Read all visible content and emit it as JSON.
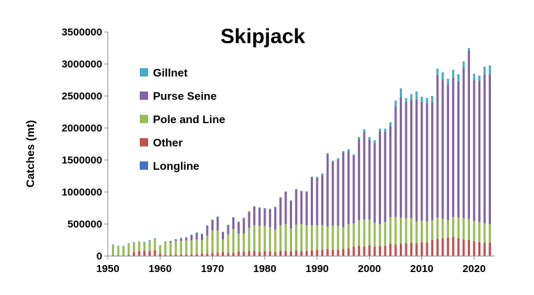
{
  "chart_data": {
    "type": "bar",
    "stacked": true,
    "title": "Skipjack",
    "xlabel": "",
    "ylabel": "Catches (mt)",
    "ylim": [
      0,
      3500000
    ],
    "y_ticks": [
      "0",
      "500000",
      "1000000",
      "1500000",
      "2000000",
      "2500000",
      "3000000",
      "3500000"
    ],
    "y_tick_values": [
      0,
      500000,
      1000000,
      1500000,
      2000000,
      2500000,
      3000000,
      3500000
    ],
    "x_ticks": [
      "1950",
      "1960",
      "1970",
      "1980",
      "1990",
      "2000",
      "2010",
      "2020"
    ],
    "x_tick_values": [
      1950,
      1960,
      1970,
      1980,
      1990,
      2000,
      2010,
      2020
    ],
    "xlim": [
      1950,
      2024
    ],
    "grid": false,
    "legend_position": "upper-left",
    "categories": [
      1951,
      1952,
      1953,
      1954,
      1955,
      1956,
      1957,
      1958,
      1959,
      1960,
      1961,
      1962,
      1963,
      1964,
      1965,
      1966,
      1967,
      1968,
      1969,
      1970,
      1971,
      1972,
      1973,
      1974,
      1975,
      1976,
      1977,
      1978,
      1979,
      1980,
      1981,
      1982,
      1983,
      1984,
      1985,
      1986,
      1987,
      1988,
      1989,
      1990,
      1991,
      1992,
      1993,
      1994,
      1995,
      1996,
      1997,
      1998,
      1999,
      2000,
      2001,
      2002,
      2003,
      2004,
      2005,
      2006,
      2007,
      2008,
      2009,
      2010,
      2011,
      2012,
      2013,
      2014,
      2015,
      2016,
      2017,
      2018,
      2019,
      2020,
      2021,
      2022,
      2023
    ],
    "series": [
      {
        "name": "Longline",
        "color": "#4472C4",
        "values": [
          0,
          0,
          0,
          0,
          0,
          0,
          0,
          0,
          0,
          0,
          0,
          0,
          0,
          0,
          0,
          0,
          0,
          0,
          0,
          0,
          0,
          0,
          0,
          0,
          0,
          0,
          0,
          0,
          0,
          0,
          0,
          0,
          0,
          0,
          0,
          0,
          0,
          0,
          0,
          0,
          0,
          0,
          0,
          0,
          0,
          0,
          0,
          0,
          0,
          0,
          0,
          0,
          0,
          0,
          0,
          0,
          0,
          0,
          0,
          0,
          0,
          0,
          0,
          0,
          0,
          0,
          0,
          0,
          0,
          0,
          0,
          0,
          0
        ]
      },
      {
        "name": "Other",
        "color": "#C0504D",
        "values": [
          10000,
          10000,
          10000,
          20000,
          60000,
          80000,
          85000,
          80000,
          90000,
          40000,
          20000,
          20000,
          25000,
          25000,
          25000,
          25000,
          30000,
          40000,
          40000,
          50000,
          50000,
          60000,
          50000,
          50000,
          70000,
          70000,
          80000,
          80000,
          60000,
          80000,
          70000,
          60000,
          80000,
          80000,
          70000,
          90000,
          80000,
          80000,
          90000,
          100000,
          100000,
          110000,
          100000,
          100000,
          110000,
          120000,
          150000,
          160000,
          150000,
          170000,
          150000,
          160000,
          160000,
          190000,
          180000,
          190000,
          200000,
          210000,
          200000,
          220000,
          210000,
          250000,
          270000,
          280000,
          290000,
          300000,
          280000,
          260000,
          250000,
          230000,
          220000,
          210000,
          210000
        ]
      },
      {
        "name": "Pole and Line",
        "color": "#9BBB59",
        "values": [
          160000,
          140000,
          140000,
          170000,
          150000,
          140000,
          130000,
          160000,
          180000,
          120000,
          200000,
          190000,
          210000,
          210000,
          220000,
          220000,
          230000,
          210000,
          280000,
          350000,
          350000,
          200000,
          290000,
          370000,
          280000,
          280000,
          360000,
          400000,
          410000,
          390000,
          380000,
          350000,
          400000,
          420000,
          360000,
          400000,
          420000,
          400000,
          390000,
          380000,
          380000,
          350000,
          380000,
          370000,
          340000,
          380000,
          360000,
          400000,
          420000,
          400000,
          370000,
          340000,
          370000,
          420000,
          430000,
          410000,
          390000,
          380000,
          340000,
          330000,
          330000,
          310000,
          330000,
          300000,
          270000,
          310000,
          320000,
          330000,
          330000,
          320000,
          310000,
          300000,
          290000
        ]
      },
      {
        "name": "Purse Seine",
        "color": "#8064A2",
        "values": [
          0,
          0,
          0,
          0,
          0,
          0,
          0,
          0,
          0,
          0,
          0,
          20000,
          20000,
          40000,
          40000,
          80000,
          100000,
          90000,
          150000,
          160000,
          210000,
          110000,
          140000,
          180000,
          180000,
          240000,
          250000,
          290000,
          280000,
          270000,
          280000,
          350000,
          430000,
          500000,
          430000,
          550000,
          510000,
          520000,
          750000,
          740000,
          790000,
          1130000,
          990000,
          1040000,
          1170000,
          1140000,
          1050000,
          1270000,
          1370000,
          1250000,
          1250000,
          1450000,
          1410000,
          1420000,
          1730000,
          1880000,
          1820000,
          1850000,
          1900000,
          1860000,
          1850000,
          1840000,
          2230000,
          2180000,
          2120000,
          2180000,
          2130000,
          2350000,
          2630000,
          2200000,
          2210000,
          2330000,
          2340000
        ]
      },
      {
        "name": "Gillnet",
        "color": "#4BACC6",
        "values": [
          10000,
          10000,
          10000,
          10000,
          10000,
          10000,
          10000,
          10000,
          10000,
          10000,
          10000,
          10000,
          10000,
          10000,
          10000,
          10000,
          10000,
          10000,
          10000,
          10000,
          10000,
          10000,
          10000,
          10000,
          10000,
          10000,
          10000,
          10000,
          10000,
          10000,
          10000,
          10000,
          10000,
          10000,
          10000,
          10000,
          10000,
          10000,
          10000,
          20000,
          20000,
          20000,
          20000,
          20000,
          20000,
          30000,
          30000,
          30000,
          40000,
          40000,
          40000,
          40000,
          50000,
          60000,
          90000,
          140000,
          60000,
          90000,
          130000,
          80000,
          80000,
          100000,
          100000,
          110000,
          90000,
          120000,
          110000,
          100000,
          40000,
          100000,
          80000,
          120000,
          140000
        ]
      }
    ]
  }
}
